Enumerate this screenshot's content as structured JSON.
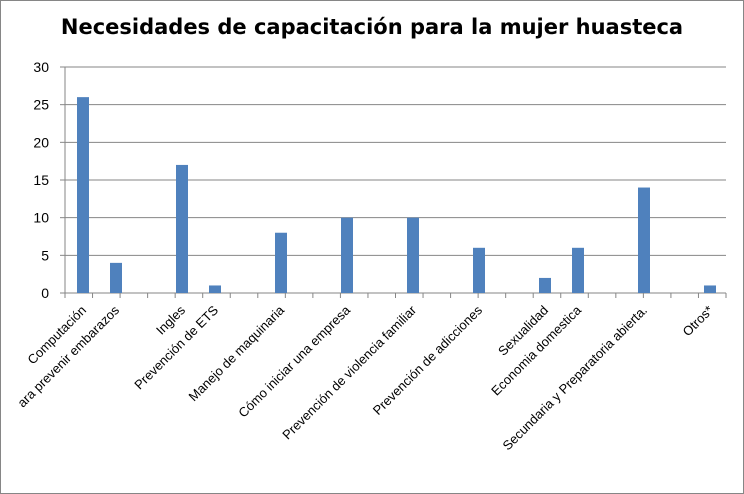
{
  "chart_data": {
    "type": "bar",
    "title": "Necesidades de capacitación para la mujer huasteca",
    "xlabel": "",
    "ylabel": "",
    "ylim": [
      0,
      30
    ],
    "yticks": [
      0,
      5,
      10,
      15,
      20,
      25,
      30
    ],
    "grid": true,
    "legend": "none",
    "bar_color": "#4F81BD",
    "categories": [
      "Computación",
      "ara prevenir embarazos",
      "Ingles",
      "Prevención de ETS",
      "Manejo de maquinaria",
      "Cómo iniciar una empresa",
      "Prevención de violencia familiar",
      "Prevención de adicciones",
      "Sexualidad",
      "Economia domestica",
      "Secundaria y Preparatoria abierta.",
      "Otros*"
    ],
    "values": [
      26,
      4,
      17,
      1,
      8,
      10,
      10,
      6,
      2,
      6,
      14,
      1
    ]
  }
}
